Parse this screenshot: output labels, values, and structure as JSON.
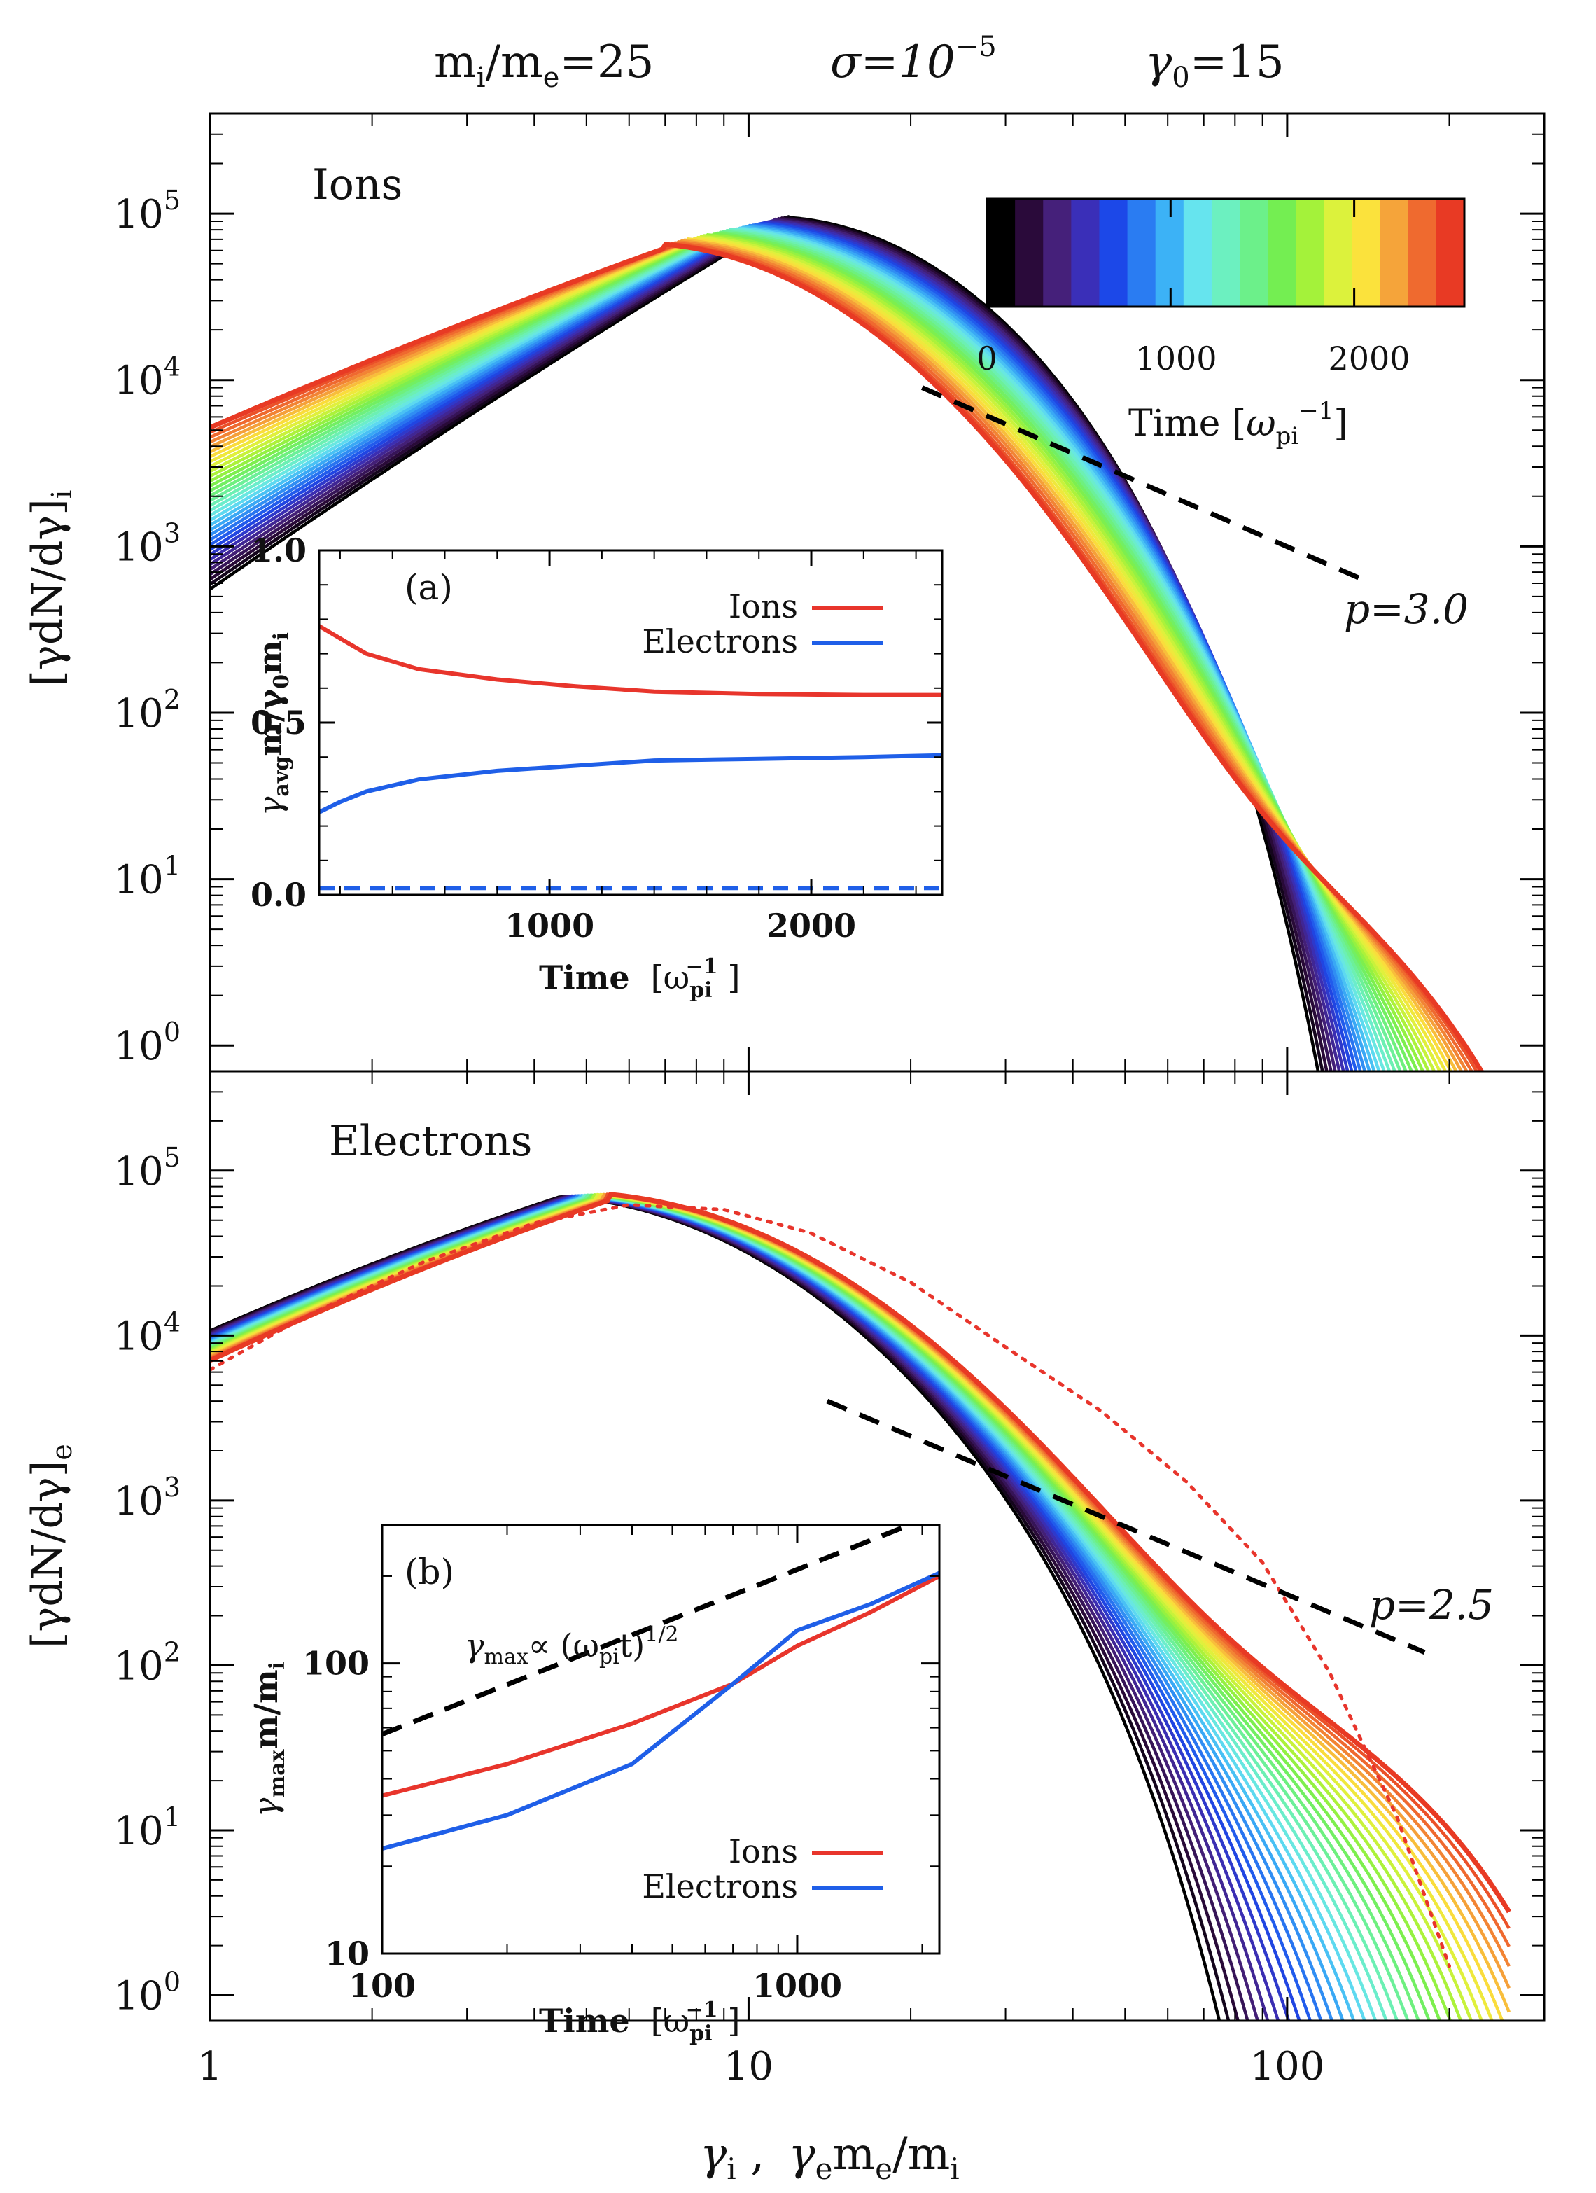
{
  "chart_data": [
    {
      "type": "line",
      "panel": "top",
      "title_parts": {
        "mass_ratio": "m_i/m_e=25",
        "sigma": "σ=10^-5",
        "gamma0": "γ_0=15"
      },
      "title_text": {
        "m": "m",
        "i": "i",
        "slash_m": "/m",
        "e": "e",
        "eq25": "=25",
        "sigma": "σ=10",
        "sigma_exp": "−5",
        "gamma": "γ",
        "zero": "0",
        "eq15": "=15"
      },
      "label": "Ions",
      "ylabel": "[γdN/dγ]_i",
      "ylabel_parts": {
        "main": "[γdN/dγ]",
        "sub": "i"
      },
      "xscale": "log",
      "yscale": "log",
      "xlim": [
        1,
        300
      ],
      "ylim": [
        0.7,
        400000
      ],
      "xticks": [
        1,
        10,
        100
      ],
      "yticks": [
        {
          "value": 1,
          "exp": "0"
        },
        {
          "value": 10,
          "exp": "1"
        },
        {
          "value": 100,
          "exp": "2"
        },
        {
          "value": 1000,
          "exp": "3"
        },
        {
          "value": 10000,
          "exp": "4"
        },
        {
          "value": 100000,
          "exp": "5"
        }
      ],
      "time_range": [
        100,
        2500
      ],
      "spectra_model": {
        "peak_gamma_early": 12,
        "peak_value_early": 98000,
        "peak_gamma_late": 7,
        "peak_value_late": 62000,
        "value_at_1_early": 800,
        "value_at_1_late": 6500,
        "cutoff_gamma_early": 55,
        "cutoff_gamma_late": 190
      },
      "powerlaw": {
        "label": "p=3.0",
        "x": [
          21,
          140
        ],
        "y": [
          9000,
          620
        ]
      },
      "colorbar": {
        "label": "Time [ω_pi^-1]",
        "label_parts": {
          "main": "Time [",
          "omega": "ω",
          "sub": "pi",
          "sup": "−1",
          "close": "]"
        },
        "ticks": [
          "0",
          "1000",
          "2000"
        ],
        "range": [
          0,
          2600
        ],
        "colors": [
          "#000000",
          "#2a0a3a",
          "#45207a",
          "#3a2fb8",
          "#1c48e8",
          "#2a7cf2",
          "#3cb2f6",
          "#66e4ee",
          "#6cf0c0",
          "#6cf08a",
          "#74ee52",
          "#a4f23a",
          "#dcf23c",
          "#fbe23c",
          "#f5a43a",
          "#ef6a2f",
          "#e83a24"
        ]
      },
      "inset": {
        "panel_label": "(a)",
        "type": "line",
        "xlabel": "Time [ω_pi^-1]",
        "xlabel_parts": {
          "main": "Time",
          "omega": "[ω",
          "sub": "pi",
          "sup": "−1",
          "close": "]"
        },
        "ylabel": "γ_avg m/γ_0 m_i",
        "ylabel_parts": {
          "g": "γ",
          "avg": "avg",
          "m": "m/γ",
          "zero": "0",
          "m2": "m",
          "i": "i"
        },
        "xlim": [
          120,
          2500
        ],
        "ylim": [
          0,
          1.0
        ],
        "xticks": [
          1000,
          2000
        ],
        "yticks": [
          "0.0",
          "0.5",
          "1.0"
        ],
        "legend": [
          "Ions",
          "Electrons"
        ],
        "series": [
          {
            "name": "Ions",
            "color": "#e8352c",
            "x": [
              120,
              300,
              500,
              800,
              1100,
              1400,
              1800,
              2200,
              2500
            ],
            "y": [
              0.78,
              0.7,
              0.655,
              0.625,
              0.605,
              0.59,
              0.583,
              0.58,
              0.58
            ]
          },
          {
            "name": "Electrons",
            "color": "#1f5fe8",
            "x": [
              120,
              200,
              300,
              500,
              800,
              1100,
              1400,
              1800,
              2200,
              2500
            ],
            "y": [
              0.24,
              0.27,
              0.3,
              0.335,
              0.36,
              0.375,
              0.39,
              0.395,
              0.4,
              0.405
            ]
          },
          {
            "name": "Electrons initial",
            "color": "#1f5fe8",
            "dashed": true,
            "x": [
              120,
              2500
            ],
            "y": [
              0.02,
              0.02
            ]
          }
        ]
      }
    },
    {
      "type": "line",
      "panel": "bottom",
      "label": "Electrons",
      "ylabel": "[γdN/dγ]_e",
      "ylabel_parts": {
        "main": "[γdN/dγ]",
        "sub": "e"
      },
      "xlabel": "γ_i , γ_e m_e/m_i",
      "xlabel_parts": {
        "g1": "γ",
        "i": "i",
        "comma": " ,",
        "g2": "γ",
        "e": "e",
        "m": "m",
        "e2": "e",
        "rest": "/m",
        "i2": "i"
      },
      "xscale": "log",
      "yscale": "log",
      "xlim": [
        1,
        300
      ],
      "ylim": [
        0.7,
        400000
      ],
      "xticks": [
        1,
        10,
        100
      ],
      "xtick_labels": [
        "1",
        "10",
        "100"
      ],
      "yticks": [
        {
          "value": 1,
          "exp": "0"
        },
        {
          "value": 10,
          "exp": "1"
        },
        {
          "value": 100,
          "exp": "2"
        },
        {
          "value": 1000,
          "exp": "3"
        },
        {
          "value": 10000,
          "exp": "4"
        },
        {
          "value": 100000,
          "exp": "5"
        }
      ],
      "spectra_model": {
        "peak_gamma_early": 4.5,
        "peak_value_early": 70000,
        "peak_gamma_late": 5.5,
        "peak_value_late": 66000,
        "value_at_1_early": 14000,
        "value_at_1_late": 10000,
        "cutoff_gamma_early": 42,
        "cutoff_gamma_late": 200
      },
      "powerlaw": {
        "label": "p=2.5",
        "x": [
          14,
          180
        ],
        "y": [
          4000,
          120
        ]
      },
      "dotted_reference": {
        "color": "#e8352c",
        "x": [
          1,
          1.5,
          2.5,
          4,
          6,
          9,
          13,
          20,
          30,
          45,
          65,
          90,
          120,
          160,
          200
        ],
        "y": [
          6200,
          13000,
          28000,
          48000,
          62000,
          58000,
          42000,
          21000,
          8500,
          3500,
          1300,
          420,
          90,
          12,
          1.5
        ]
      },
      "inset": {
        "panel_label": "(b)",
        "type": "line",
        "xscale": "log",
        "yscale": "log",
        "xlabel": "Time [ω_pi^-1]",
        "xlabel_parts": {
          "main": "Time",
          "omega": "[ω",
          "sub": "pi",
          "sup": "−1",
          "close": "]"
        },
        "ylabel": "γ_max m/m_i",
        "ylabel_parts": {
          "g": "γ",
          "max": "max",
          "m": "m/m",
          "i": "i"
        },
        "annotation": "γ_max ∝ (ω_pi t)^1/2",
        "annotation_parts": {
          "g": "γ",
          "max": "max",
          "prop": "∝ (ω",
          "pi": "pi",
          "t": "t)",
          "exp": "1/2"
        },
        "xlim": [
          100,
          2200
        ],
        "ylim": [
          10,
          300
        ],
        "xticks": [
          100,
          1000
        ],
        "xtick_labels": [
          "100",
          "1000"
        ],
        "yticks": [
          10,
          100
        ],
        "ytick_labels": [
          "10",
          "100"
        ],
        "legend": [
          "Ions",
          "Electrons"
        ],
        "series": [
          {
            "name": "scaling",
            "color": "#000000",
            "dashed": true,
            "x": [
              100,
              2200
            ],
            "y": [
              57,
              330
            ]
          },
          {
            "name": "Ions",
            "color": "#e8352c",
            "x": [
              100,
              200,
              400,
              700,
              1000,
              1500,
              2200
            ],
            "y": [
              35,
              45,
              62,
              85,
              115,
              150,
              200
            ]
          },
          {
            "name": "Electrons",
            "color": "#1f5fe8",
            "x": [
              100,
              200,
              400,
              700,
              1000,
              1500,
              2200
            ],
            "y": [
              23,
              30,
              45,
              85,
              130,
              160,
              205
            ]
          }
        ]
      }
    }
  ]
}
